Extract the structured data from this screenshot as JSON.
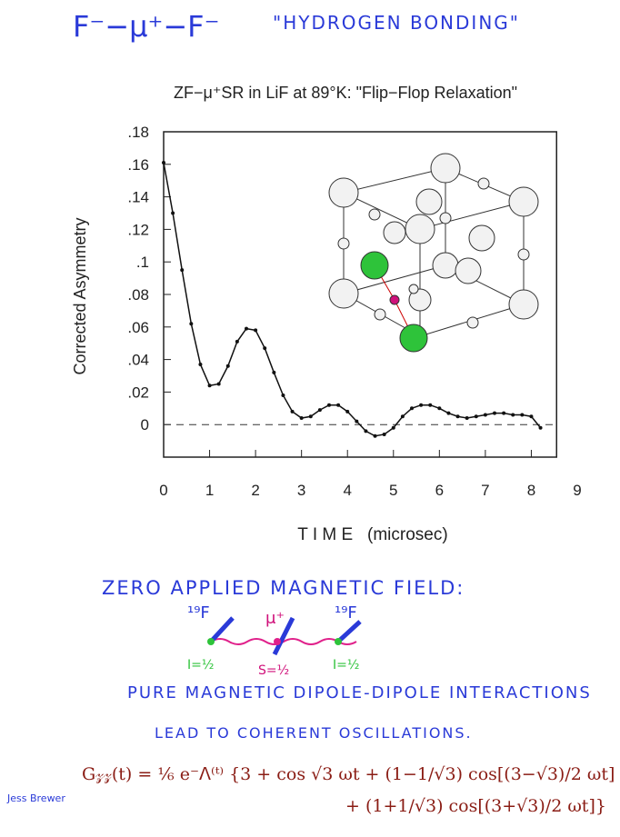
{
  "header": {
    "left": "F⁻−μ⁺−F⁻",
    "right": "\"HYDROGEN BONDING\""
  },
  "chart_data": {
    "type": "line",
    "title": "ZF−μ⁺SR in LiF at 89°K: \"Flip−Flop Relaxation\"",
    "xlabel": "T I M E   (microsec)",
    "ylabel": "Corrected Asymmetry",
    "x": [
      0,
      0.2,
      0.4,
      0.6,
      0.8,
      1.0,
      1.2,
      1.4,
      1.6,
      1.8,
      2.0,
      2.2,
      2.4,
      2.6,
      2.8,
      3.0,
      3.2,
      3.4,
      3.6,
      3.8,
      4.0,
      4.2,
      4.4,
      4.6,
      4.8,
      5.0,
      5.2,
      5.4,
      5.6,
      5.8,
      6.0,
      6.2,
      6.4,
      6.6,
      6.8,
      7.0,
      7.2,
      7.4,
      7.6,
      7.8,
      8.0,
      8.2
    ],
    "values": [
      0.161,
      0.13,
      0.095,
      0.062,
      0.037,
      0.024,
      0.025,
      0.036,
      0.051,
      0.059,
      0.058,
      0.047,
      0.032,
      0.018,
      0.008,
      0.004,
      0.005,
      0.009,
      0.012,
      0.012,
      0.008,
      0.002,
      -0.004,
      -0.007,
      -0.006,
      -0.002,
      0.005,
      0.01,
      0.012,
      0.012,
      0.01,
      0.007,
      0.005,
      0.004,
      0.005,
      0.006,
      0.007,
      0.007,
      0.006,
      0.006,
      0.005,
      -0.002
    ],
    "color": "#111111",
    "xlim": [
      0,
      9
    ],
    "xticks": [
      0,
      1,
      2,
      3,
      4,
      5,
      6,
      7,
      8,
      9
    ],
    "ylim": [
      -0.02,
      0.18
    ],
    "yticks": [
      0,
      {
        "value": 0.02,
        "label": ".02"
      },
      {
        "value": 0.04,
        "label": ".04"
      },
      {
        "value": 0.06,
        "label": ".06"
      },
      {
        "value": 0.08,
        "label": ".08"
      },
      {
        "value": 0.1,
        "label": ".1"
      },
      {
        "value": 0.12,
        "label": ".12"
      },
      {
        "value": 0.14,
        "label": ".14"
      },
      {
        "value": 0.16,
        "label": ".16"
      },
      {
        "value": 0.18,
        "label": ".18"
      }
    ],
    "zero_line": true
  },
  "notes": {
    "heading": "ZERO APPLIED MAGNETIC FIELD:",
    "diagram": {
      "left_nucleus": "¹⁹F",
      "muon": "μ⁺",
      "right_nucleus": "¹⁹F",
      "left_spin": "I=½",
      "muon_spin": "S=½",
      "right_spin": "I=½"
    },
    "line1": "PURE MAGNETIC DIPOLE-DIPOLE INTERACTIONS",
    "line2": "LEAD TO COHERENT OSCILLATIONS.",
    "formula1": "G𝓏𝓏(t) = ⅙ e⁻ᐱ⁽ᵗ⁾ {3 + cos √3 ωt + (1−1/√3) cos[(3−√3)/2 ωt]",
    "formula2": "+ (1+1/√3) cos[(3+√3)/2 ωt]}",
    "signature": "Jess Brewer"
  }
}
